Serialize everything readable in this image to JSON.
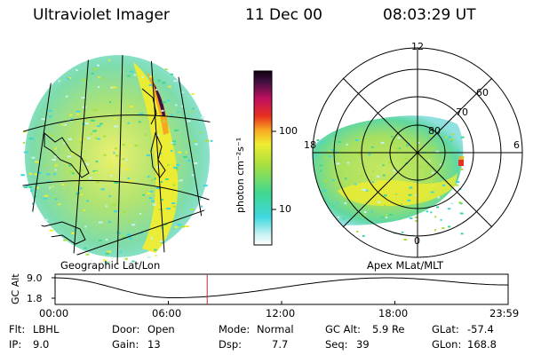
{
  "header": {
    "instrument": "Ultraviolet Imager",
    "date": "11 Dec 00",
    "time": "08:03:29 UT"
  },
  "colorbar": {
    "unit_label": "photon cm⁻²s⁻¹",
    "ticks": [
      "100",
      "10"
    ],
    "scale": "log"
  },
  "geo_panel": {
    "caption": "Geographic Lat/Lon"
  },
  "polar_panel": {
    "caption": "Apex MLat/MLT",
    "mlt_labels": [
      "12",
      "18",
      "6",
      "0"
    ],
    "lat_labels": [
      "60",
      "70",
      "80"
    ]
  },
  "altitude_plot": {
    "ylabel": "GC Alt",
    "yticks": [
      "9.0",
      "1.8"
    ],
    "xticks": [
      "00:00",
      "06:00",
      "12:00",
      "18:00",
      "23:59"
    ],
    "cursor_time": "08:03:29",
    "cursor_color": "#b03030"
  },
  "status": {
    "flt_label": "Flt:",
    "flt_value": "LBHL",
    "ip_label": "IP:",
    "ip_value": "9.0",
    "door_label": "Door:",
    "door_value": "Open",
    "gain_label": "Gain:",
    "gain_value": "13",
    "mode_label": "Mode:",
    "mode_value": "Normal",
    "dsp_label": "Dsp:",
    "dsp_value": "7.7",
    "gcalt_label": "GC Alt:",
    "gcalt_value": "5.9 Re",
    "seq_label": "Seq:",
    "seq_value": "39",
    "glat_label": "GLat:",
    "glat_value": "-57.4",
    "glon_label": "GLon:",
    "glon_value": "168.8"
  }
}
